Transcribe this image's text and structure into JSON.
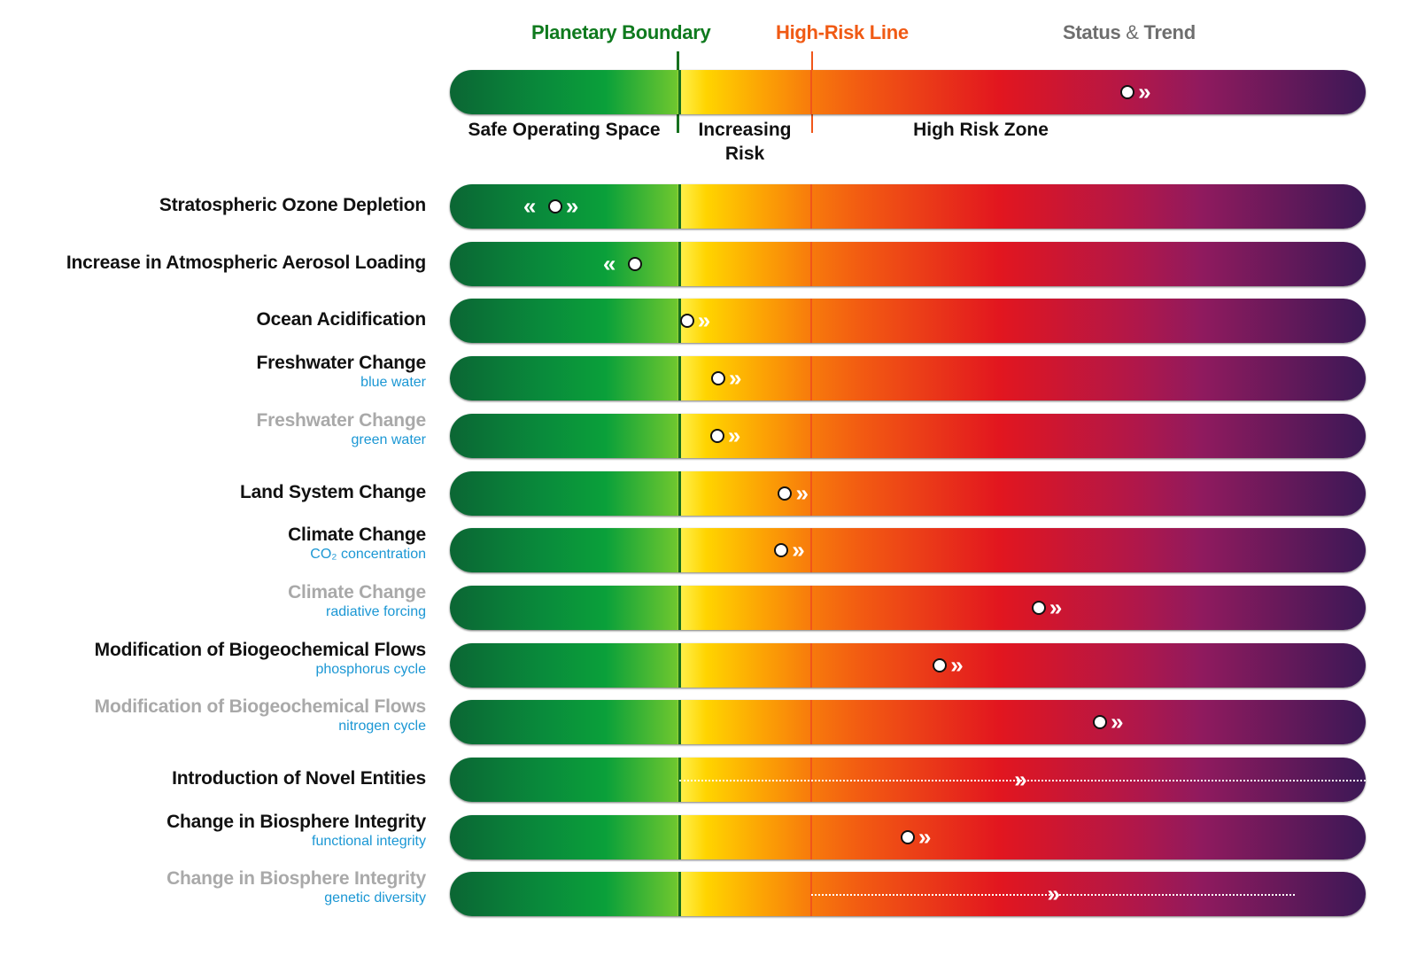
{
  "header": {
    "planetary_boundary": "Planetary Boundary",
    "high_risk_line": "High-Risk Line",
    "status_trend_a": "Status",
    "status_trend_amp": "&",
    "status_trend_b": "Trend",
    "zones": {
      "safe": "Safe Operating Space",
      "increasing_1": "Increasing",
      "increasing_2": "Risk",
      "high": "High Risk Zone"
    },
    "legend_status": 0.74,
    "legend_trend": "right"
  },
  "colors": {
    "planetary_boundary": "#0f7a1e",
    "high_risk_line": "#f05a14",
    "status_trend": "#6e6e6e",
    "subtitle": "#1b97d4",
    "secondary_title": "#a9a9a9"
  },
  "rows": [
    {
      "title": "Stratospheric Ozone Depletion",
      "subtitle": "",
      "secondary": false,
      "status": 0.115,
      "trend": "both"
    },
    {
      "title": "Increase in Atmospheric Aerosol Loading",
      "subtitle": "",
      "secondary": false,
      "status": 0.202,
      "trend": "left"
    },
    {
      "title": "Ocean Acidification",
      "subtitle": "",
      "secondary": false,
      "status": 0.259,
      "trend": "right"
    },
    {
      "title": "Freshwater Change",
      "subtitle": "blue water",
      "secondary": false,
      "status": 0.293,
      "trend": "right"
    },
    {
      "title": "Freshwater Change",
      "subtitle": "green water",
      "secondary": true,
      "status": 0.292,
      "trend": "right"
    },
    {
      "title": "Land System Change",
      "subtitle": "",
      "secondary": false,
      "status": 0.366,
      "trend": "right"
    },
    {
      "title": "Climate Change",
      "subtitle": "CO₂ concentration",
      "secondary": false,
      "status": 0.362,
      "trend": "right"
    },
    {
      "title": "Climate Change",
      "subtitle": "radiative forcing",
      "secondary": true,
      "status": 0.643,
      "trend": "right"
    },
    {
      "title": "Modification of Biogeochemical Flows",
      "subtitle": "phosphorus cycle",
      "secondary": false,
      "status": 0.535,
      "trend": "right"
    },
    {
      "title": "Modification of Biogeochemical Flows",
      "subtitle": "nitrogen cycle",
      "secondary": true,
      "status": 0.71,
      "trend": "right"
    },
    {
      "title": "Introduction of Novel Entities",
      "subtitle": "",
      "secondary": false,
      "status": null,
      "uncertain_range": [
        0.25,
        1.0
      ],
      "trend_at": 0.624,
      "trend": "right"
    },
    {
      "title": "Change in Biosphere Integrity",
      "subtitle": "functional integrity",
      "secondary": false,
      "status": 0.5,
      "trend": "right"
    },
    {
      "title": "Change in Biosphere Integrity",
      "subtitle": "genetic diversity",
      "secondary": true,
      "status": null,
      "uncertain_range": [
        0.395,
        0.923
      ],
      "trend_at": 0.66,
      "trend": "right"
    }
  ]
}
